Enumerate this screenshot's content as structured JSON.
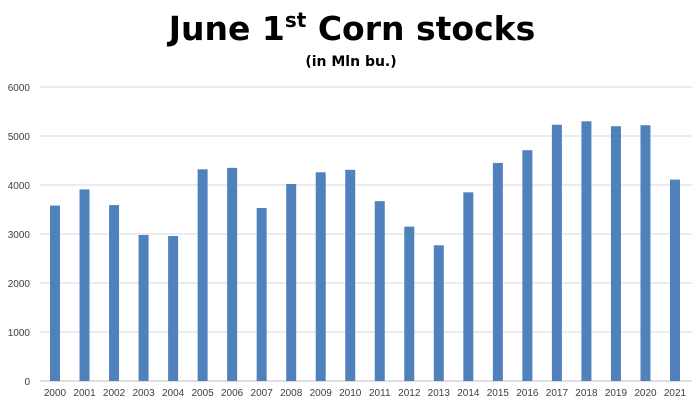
{
  "colors": {
    "bar": "#4f81bd",
    "grid": "#d9d9d9",
    "axis": "#bfbfbf",
    "text": "#404040",
    "title": "#000000"
  },
  "chart_data": {
    "type": "bar",
    "title": {
      "prefix": "June 1",
      "superscript": "st",
      "suffix": " Corn stocks"
    },
    "subtitle": "(in Mln bu.)",
    "xlabel": "",
    "ylabel": "",
    "ylim": [
      0,
      6000
    ],
    "yticks": [
      0,
      1000,
      2000,
      3000,
      4000,
      5000,
      6000
    ],
    "grid": true,
    "legend": "none",
    "categories": [
      "2000",
      "2001",
      "2002",
      "2003",
      "2004",
      "2005",
      "2006",
      "2007",
      "2008",
      "2009",
      "2010",
      "2011",
      "2012",
      "2013",
      "2014",
      "2015",
      "2016",
      "2017",
      "2018",
      "2019",
      "2020",
      "2021"
    ],
    "values": [
      3580,
      3910,
      3590,
      2980,
      2960,
      4320,
      4350,
      3530,
      4020,
      4260,
      4310,
      3670,
      3150,
      2770,
      3850,
      4450,
      4710,
      5230,
      5300,
      5200,
      5220,
      4110
    ]
  }
}
